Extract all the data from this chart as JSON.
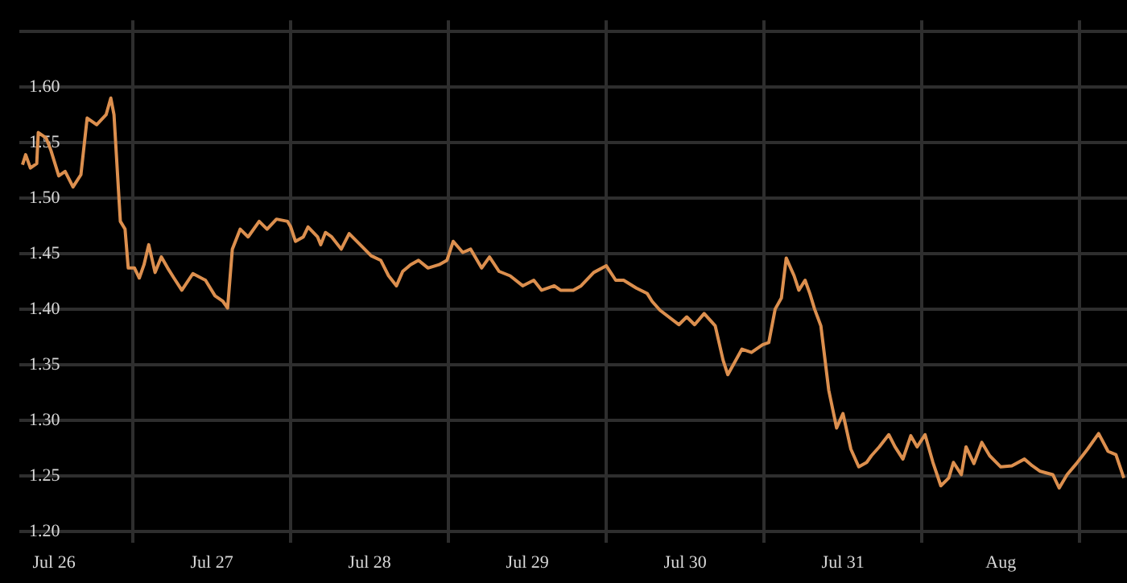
{
  "chart_data": {
    "type": "line",
    "color": "#dc8f4e",
    "x": [
      "--07-26T07:12",
      "--07-26T07:41",
      "--07-26T08:24",
      "--07-26T09:22",
      "--07-26T09:36",
      "--07-26T10:48",
      "--07-26T11:31",
      "--07-26T12:43",
      "--07-26T13:41",
      "--07-26T14:53",
      "--07-26T16:05",
      "--07-26T17:02",
      "--07-26T18:29",
      "--07-26T19:55",
      "--07-26T20:38",
      "--07-26T21:07",
      "--07-26T22:05",
      "--07-26T22:48",
      "--07-26T23:17",
      "--07-27T00:14",
      "--07-27T00:58",
      "--07-27T01:41",
      "--07-27T02:24",
      "--07-27T03:22",
      "--07-27T04:19",
      "--07-27T05:17",
      "--07-27T06:14",
      "--07-27T07:26",
      "--07-27T09:07",
      "--07-27T11:02",
      "--07-27T12:29",
      "--07-27T13:41",
      "--07-27T14:24",
      "--07-27T15:07",
      "--07-27T16:19",
      "--07-27T17:31",
      "--07-27T19:12",
      "--07-27T20:24",
      "--07-27T21:50",
      "--07-27T23:31",
      "--07-28T00:00",
      "--07-28T00:43",
      "--07-28T01:55",
      "--07-28T02:38",
      "--07-28T04:05",
      "--07-28T04:34",
      "--07-28T05:17",
      "--07-28T06:14",
      "--07-28T07:41",
      "--07-28T08:53",
      "--07-28T10:34",
      "--07-28T12:14",
      "--07-28T13:41",
      "--07-28T14:53",
      "--07-28T16:05",
      "--07-28T17:02",
      "--07-28T18:14",
      "--07-28T19:26",
      "--07-28T20:53",
      "--07-28T22:34",
      "--07-28T23:46",
      "--07-29T00:43",
      "--07-29T02:10",
      "--07-29T03:22",
      "--07-29T05:02",
      "--07-29T06:14",
      "--07-29T07:41",
      "--07-29T09:22",
      "--07-29T11:17",
      "--07-29T12:58",
      "--07-29T14:10",
      "--07-29T16:05",
      "--07-29T17:02",
      "--07-29T18:58",
      "--07-29T20:10",
      "--07-29T22:05",
      "--07-30T00:00",
      "--07-30T01:26",
      "--07-30T02:38",
      "--07-30T04:34",
      "--07-30T06:14",
      "--07-30T06:58",
      "--07-30T08:10",
      "--07-30T11:02",
      "--07-30T12:14",
      "--07-30T13:26",
      "--07-30T14:53",
      "--07-30T16:34",
      "--07-30T17:46",
      "--07-30T18:29",
      "--07-30T20:38",
      "--07-30T22:05",
      "--07-30T23:46",
      "--07-31T00:43",
      "--07-31T01:41",
      "--07-31T02:38",
      "--07-31T03:22",
      "--07-31T04:34",
      "--07-31T05:17",
      "--07-31T06:14",
      "--07-31T06:58",
      "--07-31T07:41",
      "--07-31T08:38",
      "--07-31T09:50",
      "--07-31T11:02",
      "--07-31T12:00",
      "--07-31T13:12",
      "--07-31T14:24",
      "--07-31T15:36",
      "--07-31T16:19",
      "--07-31T17:31",
      "--07-31T18:58",
      "--07-31T19:55",
      "--07-31T21:07",
      "--07-31T22:19",
      "--07-31T23:17",
      "--08-01T00:29",
      "--08-01T01:41",
      "--08-01T02:53",
      "--08-01T04:05",
      "--08-01T04:48",
      "--08-01T06:00",
      "--08-01T06:43",
      "--08-01T07:55",
      "--08-01T09:07",
      "--08-01T10:19",
      "--08-01T12:00",
      "--08-01T13:41",
      "--08-01T15:36",
      "--08-01T16:48",
      "--08-01T18:00",
      "--08-01T19:55",
      "--08-01T20:53",
      "--08-01T22:05",
      "--08-01T23:31",
      "--08-02T01:12",
      "--08-02T02:53",
      "--08-02T04:19",
      "--08-02T05:31",
      "--08-02T06:43"
    ],
    "values": [
      1.53,
      1.539,
      1.527,
      1.531,
      1.559,
      1.554,
      1.543,
      1.52,
      1.524,
      1.51,
      1.521,
      1.572,
      1.566,
      1.575,
      1.59,
      1.575,
      1.479,
      1.472,
      1.437,
      1.437,
      1.428,
      1.44,
      1.458,
      1.433,
      1.447,
      1.437,
      1.428,
      1.417,
      1.432,
      1.426,
      1.412,
      1.407,
      1.401,
      1.454,
      1.472,
      1.465,
      1.479,
      1.472,
      1.481,
      1.479,
      1.474,
      1.461,
      1.465,
      1.474,
      1.465,
      1.458,
      1.469,
      1.465,
      1.454,
      1.468,
      1.458,
      1.448,
      1.444,
      1.43,
      1.421,
      1.434,
      1.44,
      1.444,
      1.437,
      1.44,
      1.444,
      1.461,
      1.451,
      1.454,
      1.437,
      1.447,
      1.434,
      1.43,
      1.421,
      1.426,
      1.417,
      1.421,
      1.417,
      1.417,
      1.421,
      1.433,
      1.439,
      1.426,
      1.426,
      1.419,
      1.414,
      1.407,
      1.399,
      1.386,
      1.393,
      1.386,
      1.396,
      1.385,
      1.354,
      1.341,
      1.364,
      1.361,
      1.368,
      1.37,
      1.4,
      1.41,
      1.446,
      1.43,
      1.417,
      1.426,
      1.414,
      1.4,
      1.385,
      1.327,
      1.293,
      1.306,
      1.274,
      1.258,
      1.262,
      1.268,
      1.276,
      1.287,
      1.276,
      1.265,
      1.286,
      1.276,
      1.287,
      1.262,
      1.241,
      1.248,
      1.262,
      1.251,
      1.276,
      1.261,
      1.28,
      1.268,
      1.258,
      1.259,
      1.265,
      1.259,
      1.254,
      1.251,
      1.239,
      1.251,
      1.261,
      1.274,
      1.288,
      1.272,
      1.269,
      1.248
    ],
    "xlim": [
      "--07-26T06:43",
      "--08-02T07:12"
    ],
    "xticks": [
      {
        "value": "--07-26T12:00",
        "label": "Jul 26"
      },
      {
        "value": "--07-27T00:00",
        "label": null
      },
      {
        "value": "--07-27T12:00",
        "label": "Jul 27"
      },
      {
        "value": "--07-28T00:00",
        "label": null
      },
      {
        "value": "--07-28T12:00",
        "label": "Jul 28"
      },
      {
        "value": "--07-29T00:00",
        "label": null
      },
      {
        "value": "--07-29T12:00",
        "label": "Jul 29"
      },
      {
        "value": "--07-30T00:00",
        "label": null
      },
      {
        "value": "--07-30T12:00",
        "label": "Jul 30"
      },
      {
        "value": "--07-31T00:00",
        "label": null
      },
      {
        "value": "--07-31T12:00",
        "label": "Jul 31"
      },
      {
        "value": "--08-01T00:00",
        "label": null
      },
      {
        "value": "--08-01T12:00",
        "label": "Aug"
      },
      {
        "value": "--08-02T00:00",
        "label": null
      }
    ],
    "ylim": [
      1.19,
      1.66
    ],
    "yticks": [
      {
        "value": 1.2,
        "label": "1.20"
      },
      {
        "value": 1.25,
        "label": "1.25"
      },
      {
        "value": 1.3,
        "label": "1.30"
      },
      {
        "value": 1.35,
        "label": "1.35"
      },
      {
        "value": 1.4,
        "label": "1.40"
      },
      {
        "value": 1.45,
        "label": "1.45"
      },
      {
        "value": 1.5,
        "label": "1.50"
      },
      {
        "value": 1.55,
        "label": "1.55"
      },
      {
        "value": 1.6,
        "label": "1.60"
      },
      {
        "value": 1.65,
        "label": null
      }
    ],
    "grid": true
  }
}
